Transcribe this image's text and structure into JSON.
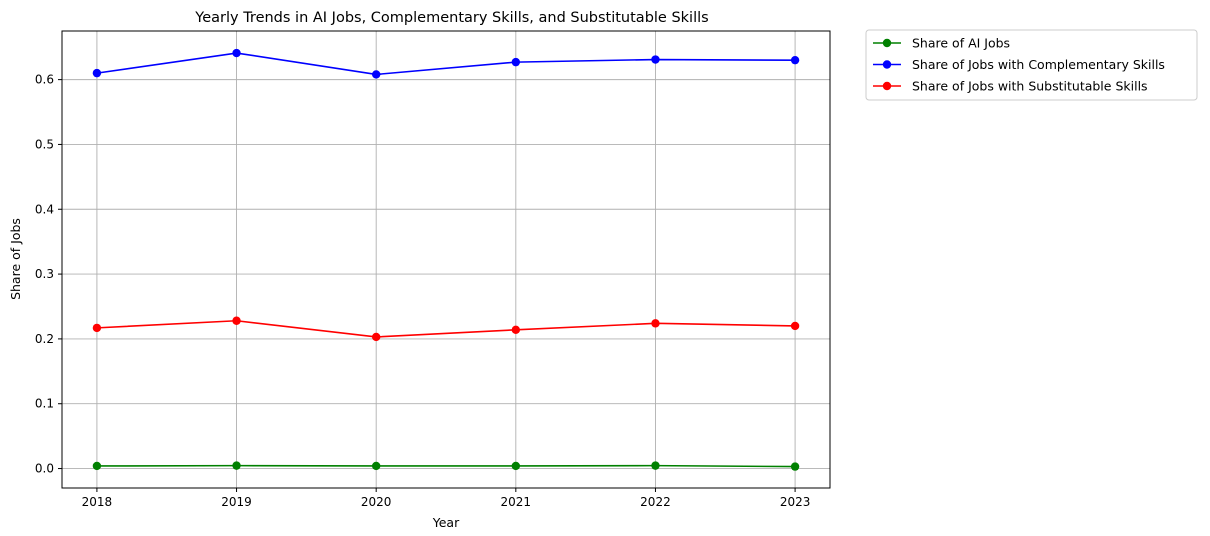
{
  "chart_data": {
    "type": "line",
    "title": "Yearly Trends in AI Jobs, Complementary Skills, and Substitutable Skills",
    "xlabel": "Year",
    "ylabel": "Share of Jobs",
    "x": [
      "2018",
      "2019",
      "2020",
      "2021",
      "2022",
      "2023"
    ],
    "xlim": [
      2017.75,
      2023.25
    ],
    "ylim": [
      -0.03,
      0.675
    ],
    "yticks": [
      "0.0",
      "0.1",
      "0.2",
      "0.3",
      "0.4",
      "0.5",
      "0.6"
    ],
    "grid": true,
    "legend_position": "outside top-right",
    "series": [
      {
        "name": "Share of AI Jobs",
        "color": "#008000",
        "values": [
          0.004,
          0.0045,
          0.004,
          0.004,
          0.0045,
          0.003
        ]
      },
      {
        "name": "Share of Jobs with Complementary Skills",
        "color": "#0000ff",
        "values": [
          0.61,
          0.641,
          0.608,
          0.627,
          0.631,
          0.63
        ]
      },
      {
        "name": "Share of Jobs with Substitutable Skills",
        "color": "#ff0000",
        "values": [
          0.217,
          0.228,
          0.203,
          0.214,
          0.224,
          0.22
        ]
      }
    ]
  }
}
